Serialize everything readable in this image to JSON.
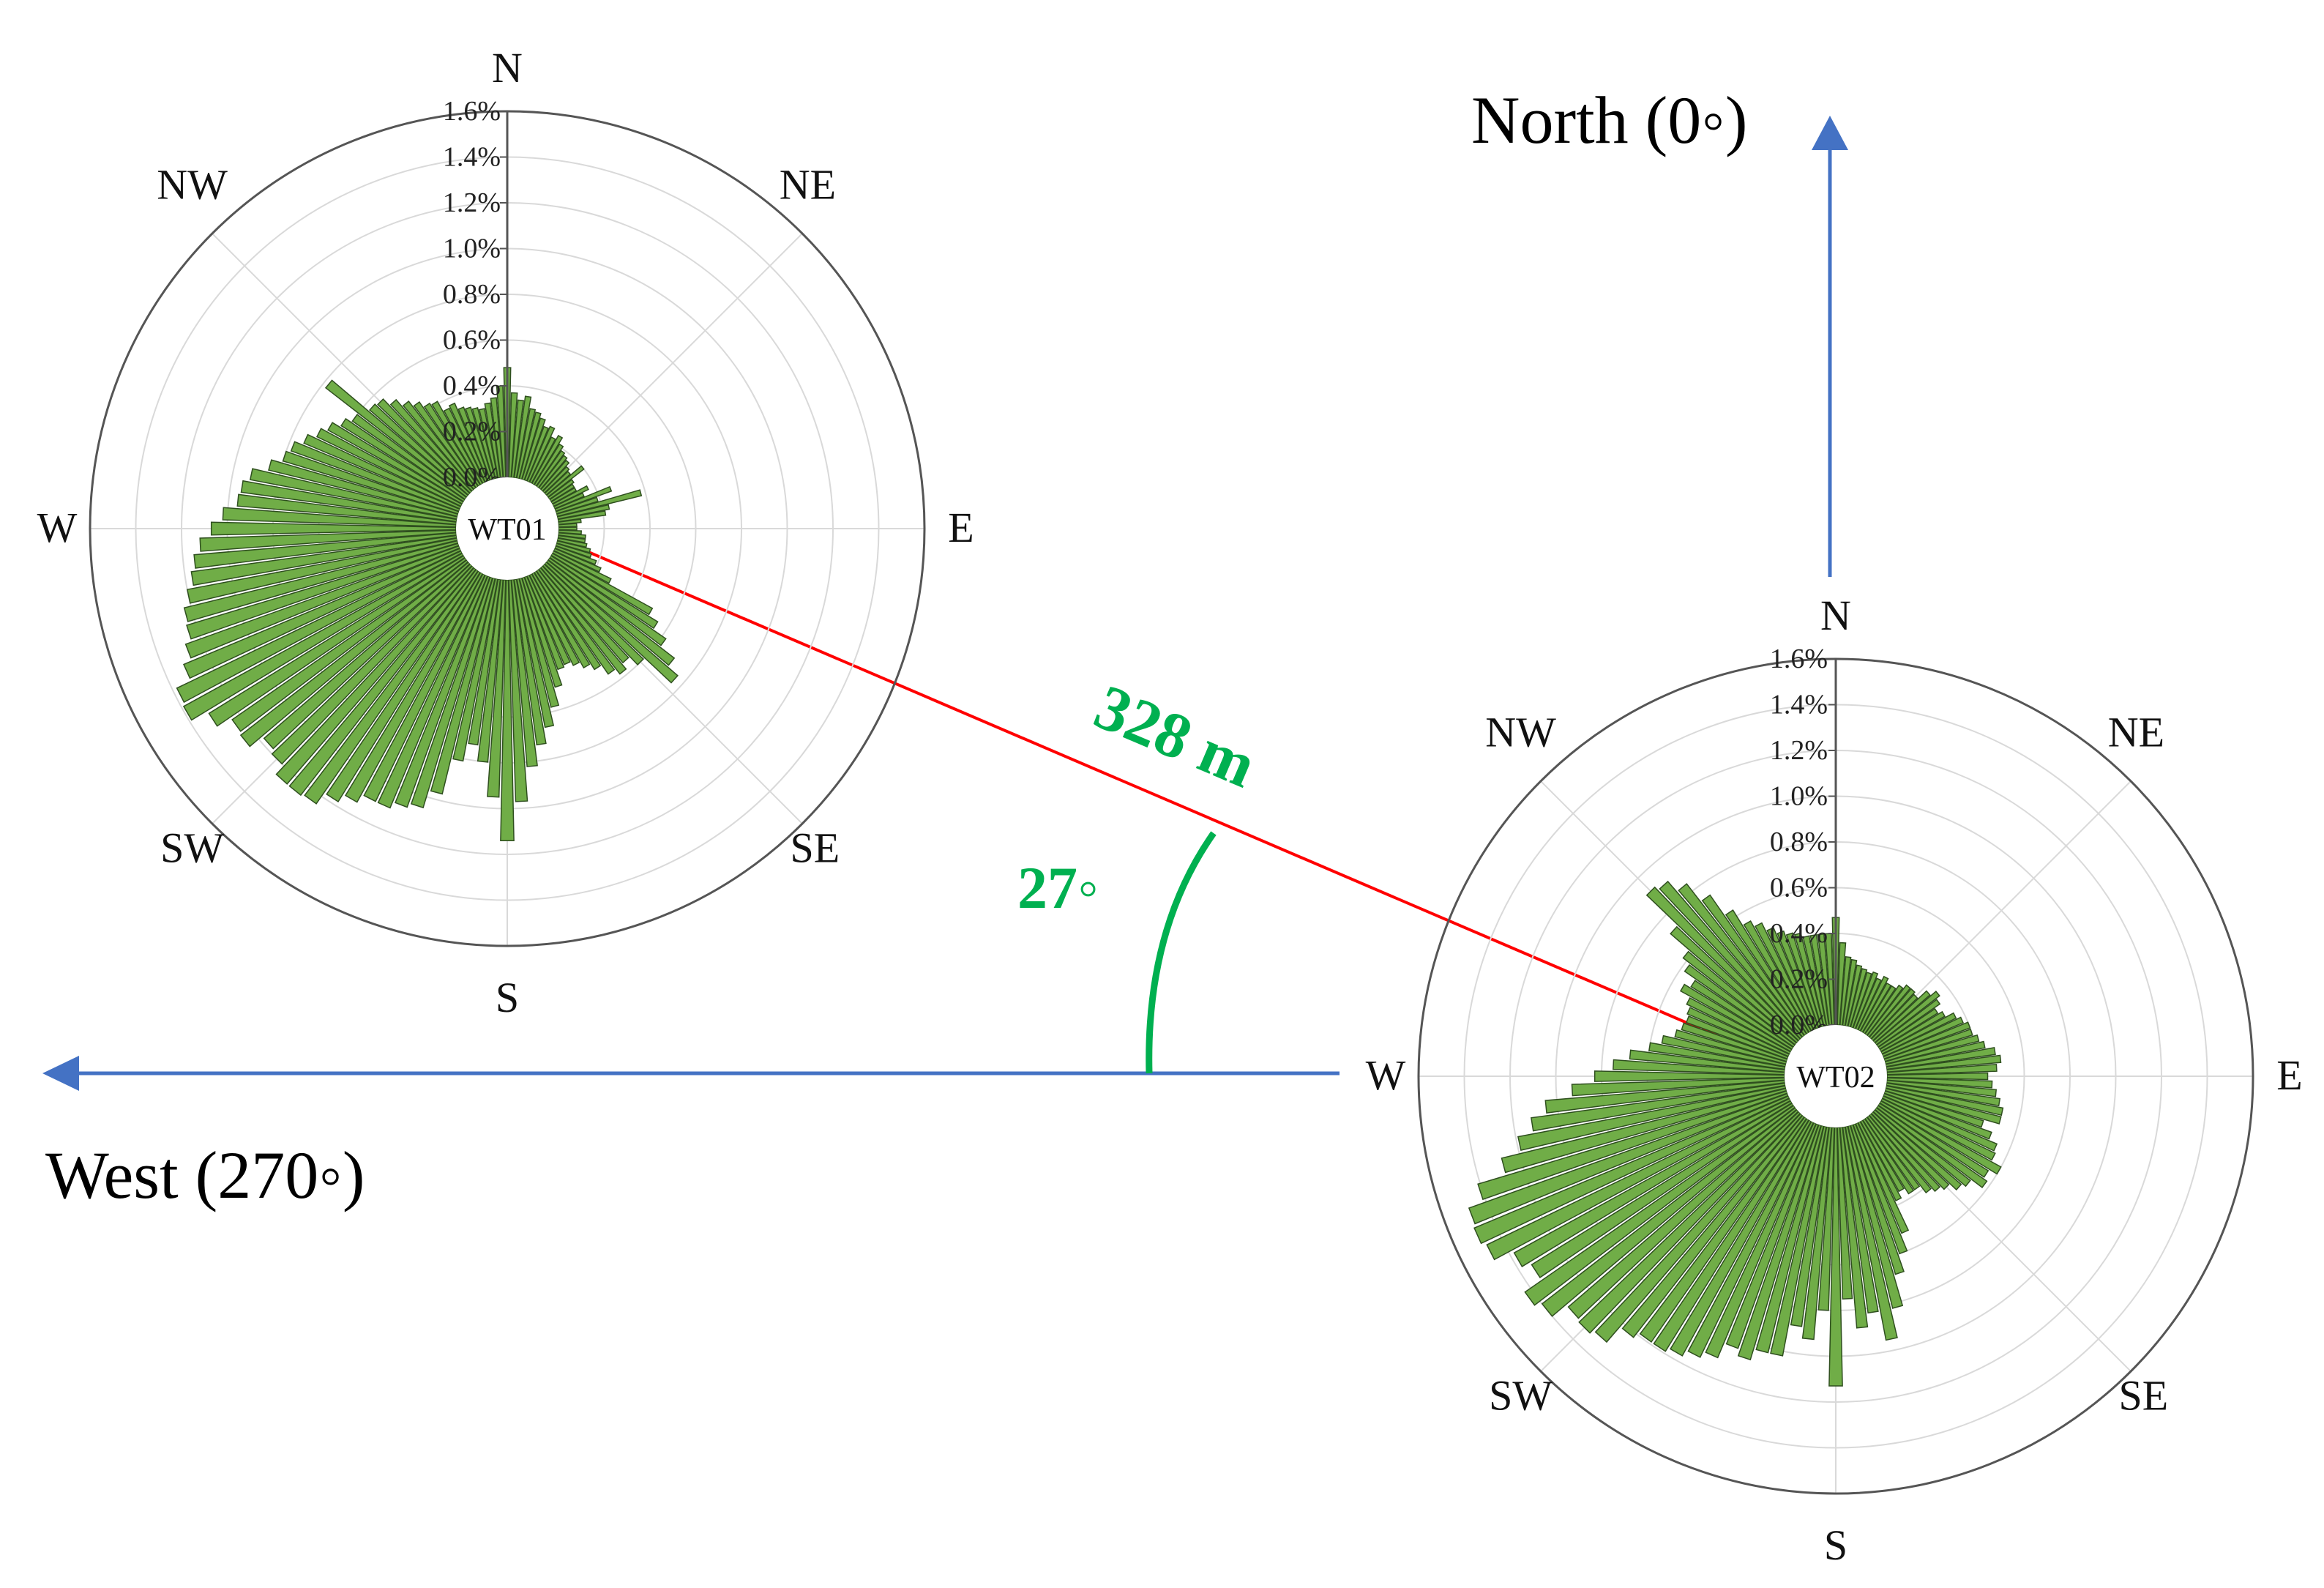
{
  "figure": {
    "north_label": "North (0◦)",
    "west_label": "West (270◦)",
    "distance_label": "328 m",
    "angle_label": "27◦",
    "colors": {
      "arrow": "#4472c4",
      "connector": "#ff0000",
      "annotation": "#00b050",
      "bar_fill": "#70ad47",
      "bar_stroke": "#2f4f1f",
      "axis": "#555555",
      "grid": "#d9d9d9"
    }
  },
  "chart_data": [
    {
      "type": "polar-bar",
      "title": "",
      "center_label": "WT01",
      "direction_labels": [
        "N",
        "NE",
        "E",
        "SE",
        "S",
        "SW",
        "W",
        "NW"
      ],
      "radial_tick_labels": [
        "0.0%",
        "0.2%",
        "0.4%",
        "0.6%",
        "0.8%",
        "1.0%",
        "1.2%",
        "1.4%",
        "1.6%"
      ],
      "rlim": [
        0,
        1.6
      ],
      "grid": true,
      "bin_width_deg": 3,
      "direction_deg": [
        0,
        3,
        6,
        9,
        12,
        15,
        18,
        21,
        24,
        27,
        30,
        33,
        36,
        39,
        42,
        45,
        48,
        51,
        54,
        57,
        60,
        63,
        66,
        69,
        72,
        75,
        78,
        81,
        84,
        87,
        90,
        93,
        96,
        99,
        102,
        105,
        108,
        111,
        114,
        117,
        120,
        123,
        126,
        129,
        132,
        135,
        138,
        141,
        144,
        147,
        150,
        153,
        156,
        159,
        162,
        165,
        168,
        171,
        174,
        177,
        180,
        183,
        186,
        189,
        192,
        195,
        198,
        201,
        204,
        207,
        210,
        213,
        216,
        219,
        222,
        225,
        228,
        231,
        234,
        237,
        240,
        243,
        246,
        249,
        252,
        255,
        258,
        261,
        264,
        267,
        270,
        273,
        276,
        279,
        282,
        285,
        288,
        291,
        294,
        297,
        300,
        303,
        306,
        309,
        312,
        315,
        318,
        321,
        324,
        327,
        330,
        333,
        336,
        339,
        342,
        345,
        348,
        351,
        354,
        357
      ],
      "frequency_pct": [
        0.48,
        0.37,
        0.34,
        0.36,
        0.31,
        0.3,
        0.28,
        0.25,
        0.26,
        0.22,
        0.24,
        0.21,
        0.19,
        0.18,
        0.17,
        0.15,
        0.14,
        0.2,
        0.13,
        0.12,
        0.12,
        0.17,
        0.14,
        0.26,
        0.19,
        0.38,
        0.23,
        0.21,
        0.1,
        0.08,
        0.08,
        0.1,
        0.12,
        0.12,
        0.13,
        0.15,
        0.16,
        0.19,
        0.22,
        0.28,
        0.5,
        0.55,
        0.62,
        0.7,
        0.76,
        0.6,
        0.55,
        0.58,
        0.55,
        0.5,
        0.47,
        0.44,
        0.42,
        0.43,
        0.5,
        0.58,
        0.66,
        0.73,
        0.82,
        0.97,
        1.14,
        0.95,
        0.8,
        0.73,
        0.81,
        0.97,
        1.05,
        1.07,
        1.1,
        1.1,
        1.14,
        1.18,
        1.24,
        1.25,
        1.25,
        1.2,
        1.18,
        1.25,
        1.24,
        1.31,
        1.39,
        1.38,
        1.31,
        1.27,
        1.24,
        1.23,
        1.2,
        1.17,
        1.15,
        1.12,
        1.07,
        1.02,
        0.96,
        0.95,
        0.92,
        0.85,
        0.8,
        0.78,
        0.74,
        0.7,
        0.67,
        0.63,
        0.6,
        0.78,
        0.57,
        0.56,
        0.52,
        0.48,
        0.45,
        0.42,
        0.41,
        0.36,
        0.37,
        0.34,
        0.33,
        0.32,
        0.31,
        0.33,
        0.35,
        0.4
      ]
    },
    {
      "type": "polar-bar",
      "title": "",
      "center_label": "WT02",
      "direction_labels": [
        "N",
        "NE",
        "E",
        "SE",
        "S",
        "SW",
        "W",
        "NW"
      ],
      "radial_tick_labels": [
        "0.0%",
        "0.2%",
        "0.4%",
        "0.6%",
        "0.8%",
        "1.0%",
        "1.2%",
        "1.4%",
        "1.6%"
      ],
      "rlim": [
        0,
        1.6
      ],
      "grid": true,
      "bin_width_deg": 3,
      "direction_deg": [
        0,
        3,
        6,
        9,
        12,
        15,
        18,
        21,
        24,
        27,
        30,
        33,
        36,
        39,
        42,
        45,
        48,
        51,
        54,
        57,
        60,
        63,
        66,
        69,
        72,
        75,
        78,
        81,
        84,
        87,
        90,
        93,
        96,
        99,
        102,
        105,
        108,
        111,
        114,
        117,
        120,
        123,
        126,
        129,
        132,
        135,
        138,
        141,
        144,
        147,
        150,
        153,
        156,
        159,
        162,
        165,
        168,
        171,
        174,
        177,
        180,
        183,
        186,
        189,
        192,
        195,
        198,
        201,
        204,
        207,
        210,
        213,
        216,
        219,
        222,
        225,
        228,
        231,
        234,
        237,
        240,
        243,
        246,
        249,
        252,
        255,
        258,
        261,
        264,
        267,
        270,
        273,
        276,
        279,
        282,
        285,
        288,
        291,
        294,
        297,
        300,
        303,
        306,
        309,
        312,
        315,
        318,
        321,
        324,
        327,
        330,
        333,
        336,
        339,
        342,
        345,
        348,
        351,
        354,
        357
      ],
      "frequency_pct": [
        0.47,
        0.36,
        0.3,
        0.29,
        0.27,
        0.26,
        0.25,
        0.26,
        0.24,
        0.26,
        0.24,
        0.24,
        0.26,
        0.28,
        0.28,
        0.27,
        0.32,
        0.35,
        0.33,
        0.3,
        0.32,
        0.36,
        0.38,
        0.4,
        0.4,
        0.42,
        0.44,
        0.48,
        0.5,
        0.48,
        0.44,
        0.46,
        0.48,
        0.5,
        0.52,
        0.52,
        0.45,
        0.5,
        0.54,
        0.55,
        0.6,
        0.56,
        0.58,
        0.52,
        0.5,
        0.46,
        0.44,
        0.42,
        0.38,
        0.38,
        0.35,
        0.38,
        0.52,
        0.6,
        0.68,
        0.82,
        0.95,
        0.82,
        0.88,
        0.75,
        1.13,
        0.8,
        0.93,
        0.88,
        1.02,
        1.02,
        1.07,
        1.04,
        1.11,
        1.14,
        1.17,
        1.19,
        1.19,
        1.22,
        1.31,
        1.33,
        1.32,
        1.4,
        1.43,
        1.34,
        1.38,
        1.47,
        1.49,
        1.48,
        1.41,
        1.28,
        1.19,
        1.12,
        1.05,
        0.93,
        0.83,
        0.75,
        0.68,
        0.6,
        0.55,
        0.5,
        0.48,
        0.47,
        0.48,
        0.5,
        0.55,
        0.52,
        0.58,
        0.62,
        0.73,
        0.92,
        0.9,
        0.84,
        0.74,
        0.63,
        0.55,
        0.52,
        0.48,
        0.45,
        0.43,
        0.42,
        0.4,
        0.4,
        0.4,
        0.4
      ]
    }
  ]
}
